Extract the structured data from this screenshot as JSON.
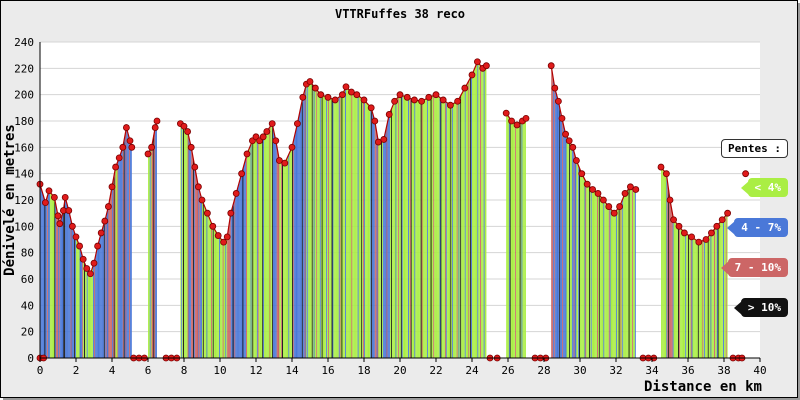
{
  "chart_data": {
    "type": "area",
    "title": "VTTRFuffes 38 reco",
    "xlabel": "Distance en km",
    "ylabel": "Dénivelé en metres",
    "xlim": [
      0,
      40
    ],
    "ylim": [
      0,
      240
    ],
    "x_ticks": [
      "0",
      "2",
      "4",
      "6",
      "8",
      "10",
      "12",
      "14",
      "16",
      "18",
      "20",
      "22",
      "24",
      "26",
      "28",
      "30",
      "32",
      "34",
      "36",
      "38",
      "40"
    ],
    "y_ticks": [
      "0",
      "20",
      "40",
      "60",
      "80",
      "100",
      "120",
      "140",
      "160",
      "180",
      "200",
      "220",
      "240"
    ],
    "grid": true,
    "legend_position": "right",
    "legend_title": "Pentes :",
    "legend": [
      {
        "label": "< 4%",
        "color": "#aaee44"
      },
      {
        "label": "4 - 7%",
        "color": "#4a78d8"
      },
      {
        "label": "7 - 10%",
        "color": "#cc6666"
      },
      {
        "label": "> 10%",
        "color": "#111111"
      }
    ],
    "segments": [
      {
        "points": [
          [
            0.0,
            132
          ],
          [
            0.3,
            118
          ],
          [
            0.5,
            127
          ],
          [
            0.8,
            122
          ],
          [
            1.0,
            108
          ],
          [
            1.1,
            102
          ],
          [
            1.3,
            112
          ],
          [
            1.4,
            122
          ],
          [
            1.6,
            112
          ],
          [
            1.8,
            100
          ],
          [
            2.0,
            92
          ],
          [
            2.2,
            85
          ],
          [
            2.4,
            75
          ],
          [
            2.6,
            68
          ],
          [
            2.8,
            64
          ],
          [
            3.0,
            72
          ],
          [
            3.2,
            85
          ],
          [
            3.4,
            95
          ],
          [
            3.6,
            104
          ],
          [
            3.8,
            115
          ],
          [
            4.0,
            130
          ],
          [
            4.2,
            145
          ],
          [
            4.4,
            152
          ],
          [
            4.6,
            160
          ],
          [
            4.8,
            175
          ],
          [
            5.0,
            165
          ],
          [
            5.1,
            160
          ]
        ]
      },
      {
        "points": [
          [
            6.0,
            155
          ],
          [
            6.2,
            160
          ],
          [
            6.4,
            175
          ],
          [
            6.5,
            180
          ]
        ]
      },
      {
        "points": [
          [
            7.8,
            178
          ],
          [
            8.0,
            176
          ],
          [
            8.2,
            172
          ],
          [
            8.4,
            160
          ],
          [
            8.6,
            145
          ],
          [
            8.8,
            130
          ],
          [
            9.0,
            120
          ],
          [
            9.3,
            110
          ],
          [
            9.6,
            100
          ],
          [
            9.9,
            93
          ],
          [
            10.2,
            88
          ],
          [
            10.4,
            92
          ],
          [
            10.6,
            110
          ],
          [
            10.9,
            125
          ],
          [
            11.2,
            140
          ],
          [
            11.5,
            155
          ],
          [
            11.8,
            165
          ],
          [
            12.0,
            168
          ],
          [
            12.2,
            165
          ],
          [
            12.4,
            168
          ],
          [
            12.6,
            172
          ],
          [
            12.9,
            178
          ],
          [
            13.1,
            165
          ],
          [
            13.3,
            150
          ],
          [
            13.6,
            148
          ],
          [
            14.0,
            160
          ],
          [
            14.3,
            178
          ],
          [
            14.6,
            198
          ],
          [
            14.8,
            208
          ],
          [
            15.0,
            210
          ],
          [
            15.3,
            205
          ],
          [
            15.6,
            200
          ],
          [
            16.0,
            198
          ],
          [
            16.4,
            196
          ],
          [
            16.8,
            200
          ],
          [
            17.0,
            206
          ],
          [
            17.3,
            202
          ],
          [
            17.6,
            200
          ],
          [
            18.0,
            196
          ],
          [
            18.4,
            190
          ],
          [
            18.6,
            180
          ],
          [
            18.8,
            164
          ],
          [
            19.1,
            166
          ],
          [
            19.4,
            185
          ],
          [
            19.7,
            195
          ],
          [
            20.0,
            200
          ],
          [
            20.4,
            198
          ],
          [
            20.8,
            196
          ],
          [
            21.2,
            195
          ],
          [
            21.6,
            198
          ],
          [
            22.0,
            200
          ],
          [
            22.4,
            196
          ],
          [
            22.8,
            192
          ],
          [
            23.2,
            195
          ],
          [
            23.6,
            205
          ],
          [
            24.0,
            215
          ],
          [
            24.3,
            225
          ],
          [
            24.6,
            220
          ],
          [
            24.8,
            222
          ]
        ]
      },
      {
        "points": [
          [
            25.9,
            186
          ],
          [
            26.2,
            180
          ],
          [
            26.5,
            177
          ],
          [
            26.8,
            180
          ],
          [
            27.0,
            182
          ]
        ]
      },
      {
        "points": [
          [
            28.4,
            222
          ],
          [
            28.6,
            205
          ],
          [
            28.8,
            195
          ],
          [
            29.0,
            182
          ],
          [
            29.2,
            170
          ],
          [
            29.4,
            165
          ],
          [
            29.6,
            160
          ],
          [
            29.8,
            150
          ],
          [
            30.1,
            140
          ],
          [
            30.4,
            132
          ],
          [
            30.7,
            128
          ],
          [
            31.0,
            125
          ],
          [
            31.3,
            120
          ],
          [
            31.6,
            115
          ],
          [
            31.9,
            110
          ],
          [
            32.2,
            115
          ],
          [
            32.5,
            125
          ],
          [
            32.8,
            130
          ],
          [
            33.1,
            128
          ]
        ]
      },
      {
        "points": [
          [
            34.5,
            145
          ],
          [
            34.8,
            140
          ],
          [
            35.0,
            120
          ],
          [
            35.2,
            105
          ],
          [
            35.5,
            100
          ],
          [
            35.8,
            95
          ],
          [
            36.2,
            92
          ],
          [
            36.6,
            88
          ],
          [
            37.0,
            90
          ],
          [
            37.3,
            95
          ],
          [
            37.6,
            100
          ],
          [
            37.9,
            105
          ],
          [
            38.2,
            110
          ]
        ]
      }
    ],
    "dots": [
      [
        0.0,
        132
      ],
      [
        0.3,
        118
      ],
      [
        0.5,
        127
      ],
      [
        0.8,
        122
      ],
      [
        1.0,
        108
      ],
      [
        1.1,
        102
      ],
      [
        1.3,
        112
      ],
      [
        1.4,
        122
      ],
      [
        1.6,
        112
      ],
      [
        1.8,
        100
      ],
      [
        2.0,
        92
      ],
      [
        2.2,
        85
      ],
      [
        2.4,
        75
      ],
      [
        2.6,
        68
      ],
      [
        2.8,
        64
      ],
      [
        3.0,
        72
      ],
      [
        3.2,
        85
      ],
      [
        3.4,
        95
      ],
      [
        3.6,
        104
      ],
      [
        3.8,
        115
      ],
      [
        4.0,
        130
      ],
      [
        4.2,
        145
      ],
      [
        4.4,
        152
      ],
      [
        4.6,
        160
      ],
      [
        4.8,
        175
      ],
      [
        5.0,
        165
      ],
      [
        5.1,
        160
      ],
      [
        6.0,
        155
      ],
      [
        6.2,
        160
      ],
      [
        6.4,
        175
      ],
      [
        6.5,
        180
      ],
      [
        7.8,
        178
      ],
      [
        8.0,
        176
      ],
      [
        8.2,
        172
      ],
      [
        8.4,
        160
      ],
      [
        8.6,
        145
      ],
      [
        8.8,
        130
      ],
      [
        9.0,
        120
      ],
      [
        9.3,
        110
      ],
      [
        9.6,
        100
      ],
      [
        9.9,
        93
      ],
      [
        10.2,
        88
      ],
      [
        10.4,
        92
      ],
      [
        10.6,
        110
      ],
      [
        10.9,
        125
      ],
      [
        11.2,
        140
      ],
      [
        11.5,
        155
      ],
      [
        11.8,
        165
      ],
      [
        12.0,
        168
      ],
      [
        12.2,
        165
      ],
      [
        12.4,
        168
      ],
      [
        12.6,
        172
      ],
      [
        12.9,
        178
      ],
      [
        13.1,
        165
      ],
      [
        13.3,
        150
      ],
      [
        13.6,
        148
      ],
      [
        14.0,
        160
      ],
      [
        14.3,
        178
      ],
      [
        14.6,
        198
      ],
      [
        14.8,
        208
      ],
      [
        15.0,
        210
      ],
      [
        15.3,
        205
      ],
      [
        15.6,
        200
      ],
      [
        16.0,
        198
      ],
      [
        16.4,
        196
      ],
      [
        16.8,
        200
      ],
      [
        17.0,
        206
      ],
      [
        17.3,
        202
      ],
      [
        17.6,
        200
      ],
      [
        18.0,
        196
      ],
      [
        18.4,
        190
      ],
      [
        18.6,
        180
      ],
      [
        18.8,
        164
      ],
      [
        19.1,
        166
      ],
      [
        19.4,
        185
      ],
      [
        19.7,
        195
      ],
      [
        20.0,
        200
      ],
      [
        20.4,
        198
      ],
      [
        20.8,
        196
      ],
      [
        21.2,
        195
      ],
      [
        21.6,
        198
      ],
      [
        22.0,
        200
      ],
      [
        22.4,
        196
      ],
      [
        22.8,
        192
      ],
      [
        23.2,
        195
      ],
      [
        23.6,
        205
      ],
      [
        24.0,
        215
      ],
      [
        24.3,
        225
      ],
      [
        24.6,
        220
      ],
      [
        24.8,
        222
      ],
      [
        25.9,
        186
      ],
      [
        26.2,
        180
      ],
      [
        26.5,
        177
      ],
      [
        26.8,
        180
      ],
      [
        27.0,
        182
      ],
      [
        28.4,
        222
      ],
      [
        28.6,
        205
      ],
      [
        28.8,
        195
      ],
      [
        29.0,
        182
      ],
      [
        29.2,
        170
      ],
      [
        29.4,
        165
      ],
      [
        29.6,
        160
      ],
      [
        29.8,
        150
      ],
      [
        30.1,
        140
      ],
      [
        30.4,
        132
      ],
      [
        30.7,
        128
      ],
      [
        31.0,
        125
      ],
      [
        31.3,
        120
      ],
      [
        31.6,
        115
      ],
      [
        31.9,
        110
      ],
      [
        32.2,
        115
      ],
      [
        32.5,
        125
      ],
      [
        32.8,
        130
      ],
      [
        33.1,
        128
      ],
      [
        34.5,
        145
      ],
      [
        34.8,
        140
      ],
      [
        35.0,
        120
      ],
      [
        35.2,
        105
      ],
      [
        35.5,
        100
      ],
      [
        35.8,
        95
      ],
      [
        36.2,
        92
      ],
      [
        36.6,
        88
      ],
      [
        37.0,
        90
      ],
      [
        37.3,
        95
      ],
      [
        37.6,
        100
      ],
      [
        37.9,
        105
      ],
      [
        38.2,
        110
      ],
      [
        39.2,
        140
      ],
      [
        0.0,
        0
      ],
      [
        0.2,
        0
      ],
      [
        5.2,
        0
      ],
      [
        5.5,
        0
      ],
      [
        5.8,
        0
      ],
      [
        7.0,
        0
      ],
      [
        7.3,
        0
      ],
      [
        7.6,
        0
      ],
      [
        25.0,
        0
      ],
      [
        25.4,
        0
      ],
      [
        27.5,
        0
      ],
      [
        27.8,
        0
      ],
      [
        28.1,
        0
      ],
      [
        33.5,
        0
      ],
      [
        33.8,
        0
      ],
      [
        34.1,
        0
      ],
      [
        38.5,
        0
      ],
      [
        38.8,
        0
      ],
      [
        39.0,
        0
      ]
    ]
  }
}
